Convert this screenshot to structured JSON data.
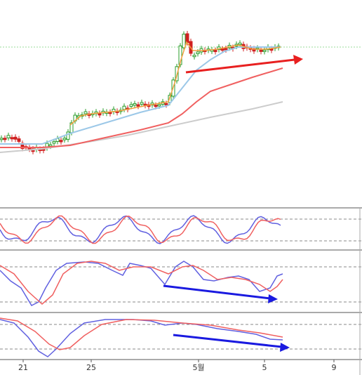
{
  "x_axis": {
    "labels": [
      "21",
      "25",
      "5월",
      "5",
      "9"
    ]
  }
}
